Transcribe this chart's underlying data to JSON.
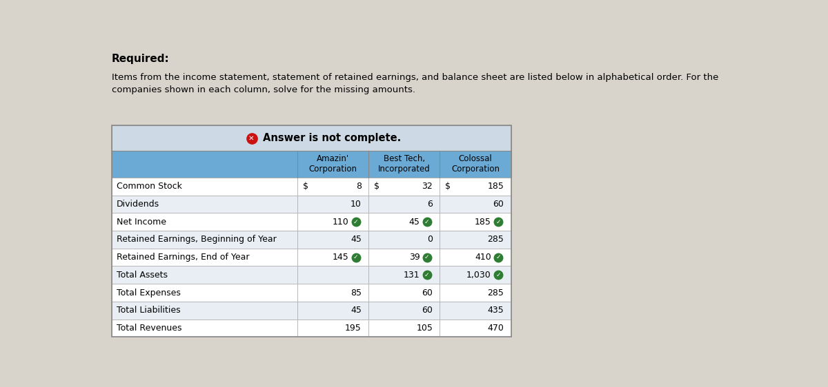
{
  "title_required": "Required:",
  "subtitle": "Items from the income statement, statement of retained earnings, and balance sheet are listed below in alphabetical order. For the\ncompanies shown in each column, solve for the missing amounts.",
  "banner_text": "Answer is not complete.",
  "row_labels": [
    "Common Stock",
    "Dividends",
    "Net Income",
    "Retained Earnings, Beginning of Year",
    "Retained Earnings, End of Year",
    "Total Assets",
    "Total Expenses",
    "Total Liabilities",
    "Total Revenues"
  ],
  "col_headers": [
    "Amazin'\nCorporation",
    "Best Tech,\nIncorporated",
    "Colossal\nCorporation"
  ],
  "data": [
    [
      "8",
      "32",
      "185"
    ],
    [
      "10",
      "6",
      "60"
    ],
    [
      "110",
      "45",
      "185"
    ],
    [
      "45",
      "0",
      "285"
    ],
    [
      "145",
      "39",
      "410"
    ],
    [
      "",
      "131",
      "1,030"
    ],
    [
      "85",
      "60",
      "285"
    ],
    [
      "45",
      "60",
      "435"
    ],
    [
      "195",
      "105",
      "470"
    ]
  ],
  "dollar_signs": [
    [
      true,
      true,
      true
    ],
    [
      false,
      false,
      false
    ],
    [
      false,
      false,
      false
    ],
    [
      false,
      false,
      false
    ],
    [
      false,
      false,
      false
    ],
    [
      false,
      false,
      false
    ],
    [
      false,
      false,
      false
    ],
    [
      false,
      false,
      false
    ],
    [
      false,
      false,
      false
    ]
  ],
  "checkmarks": [
    [
      false,
      false,
      false
    ],
    [
      false,
      false,
      false
    ],
    [
      true,
      true,
      true
    ],
    [
      false,
      false,
      false
    ],
    [
      true,
      true,
      true
    ],
    [
      false,
      true,
      true
    ],
    [
      false,
      false,
      false
    ],
    [
      false,
      false,
      false
    ],
    [
      false,
      false,
      false
    ]
  ],
  "page_bg": "#d8d4cc",
  "banner_bg": "#cdd9e5",
  "header_bg": "#6aaad4",
  "row_bg_white": "#ffffff",
  "row_bg_light": "#e8eef4",
  "check_color": "#2e7d32",
  "x_color": "#cc1111",
  "text_color": "#000000",
  "header_text_color": "#000000",
  "font_size": 9,
  "title_font_size": 11,
  "subtitle_font_size": 9.5
}
